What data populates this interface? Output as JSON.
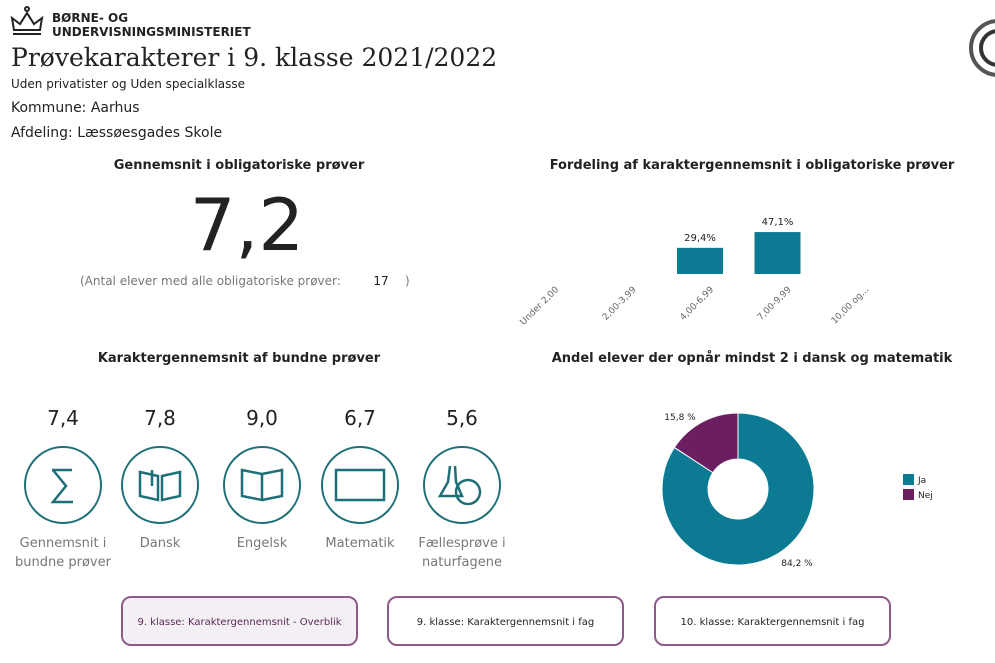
{
  "header": {
    "ministry_line1": "BØRNE- OG",
    "ministry_line2": "UNDERVISNINGSMINISTERIET",
    "title": "Prøvekarakterer i 9. klasse 2021/2022",
    "subtitle": "Uden privatister og Uden specialklasse",
    "kommune": "Kommune: Aarhus",
    "afdeling": "Afdeling: Læssøesgades Skole"
  },
  "kpi": {
    "title": "Gennemsnit i obligatoriske prøver",
    "value": "7,2",
    "count_prefix": "(Antal elever med alle obligatoriske prøver:",
    "count": "17",
    "count_suffix": ")"
  },
  "bound": {
    "title": "Karaktergennemsnit af bundne prøver",
    "items": [
      {
        "value": "7,4",
        "label": [
          "Gennemsnit i",
          "bundne prøver"
        ]
      },
      {
        "value": "7,8",
        "label": [
          "Dansk"
        ]
      },
      {
        "value": "9,0",
        "label": [
          "Engelsk"
        ]
      },
      {
        "value": "6,7",
        "label": [
          "Matematik"
        ]
      },
      {
        "value": "5,6",
        "label": [
          "Fællesprøve i",
          "naturfagene"
        ]
      }
    ]
  },
  "chart_data": [
    {
      "type": "bar",
      "title": "Fordeling af karaktergennemsnit i obligatoriske prøver",
      "categories": [
        "Under 2,00",
        "2,00-3,99",
        "4,00-6,99",
        "7,00-9,99",
        "10,00 og..."
      ],
      "values": [
        null,
        null,
        29.4,
        47.1,
        null
      ],
      "value_labels": [
        null,
        null,
        "29,4%",
        "47,1%",
        null
      ],
      "color": "#0b7a92"
    },
    {
      "type": "pie",
      "title": "Andel elever der opnår mindst 2 i dansk og matematik",
      "categories": [
        "Ja",
        "Nej"
      ],
      "values": [
        84.2,
        15.8
      ],
      "value_labels": [
        "84,2 %",
        "15,8 %"
      ],
      "colors": [
        "#0b7a92",
        "#6b1f60"
      ],
      "legend": "right"
    }
  ],
  "buttons": [
    "9. klasse: Karaktergennemsnit - Overblik",
    "9. klasse: Karaktergennemsnit i fag",
    "10. klasse: Karaktergennemsnit i fag"
  ]
}
